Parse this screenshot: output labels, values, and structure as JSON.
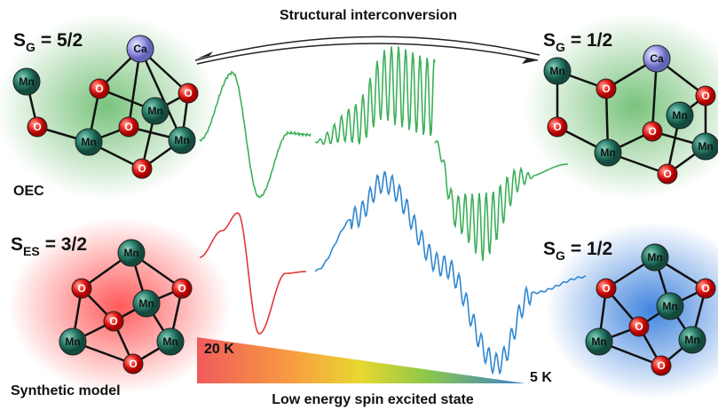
{
  "title": "Structural interconversion",
  "clusters": [
    {
      "spin": {
        "symbol": "S",
        "subscript": "G",
        "value": "= 5/2"
      },
      "label": "OEC",
      "atoms": [
        "Ca",
        "Mn",
        "O",
        "O",
        "O",
        "Mn",
        "O",
        "Mn",
        "Mn",
        "O"
      ]
    },
    {
      "spin": {
        "symbol": "S",
        "subscript": "G",
        "value": "= 1/2"
      },
      "atoms": [
        "Mn",
        "Ca",
        "O",
        "O",
        "O",
        "Mn",
        "O",
        "Mn",
        "Mn",
        "O"
      ]
    },
    {
      "spin": {
        "symbol": "S",
        "subscript": "ES",
        "value": "= 3/2"
      },
      "label": "Synthetic model",
      "atoms": [
        "Mn",
        "O",
        "O",
        "Mn",
        "O",
        "Mn",
        "Mn",
        "O"
      ]
    },
    {
      "spin": {
        "symbol": "S",
        "subscript": "G",
        "value": "= 1/2"
      },
      "atoms": [
        "Mn",
        "O",
        "O",
        "Mn",
        "O",
        "Mn",
        "Mn",
        "O"
      ]
    }
  ],
  "temperature_scale": {
    "high": "20 K",
    "low": "5 K",
    "caption": "Low energy spin excited state"
  }
}
